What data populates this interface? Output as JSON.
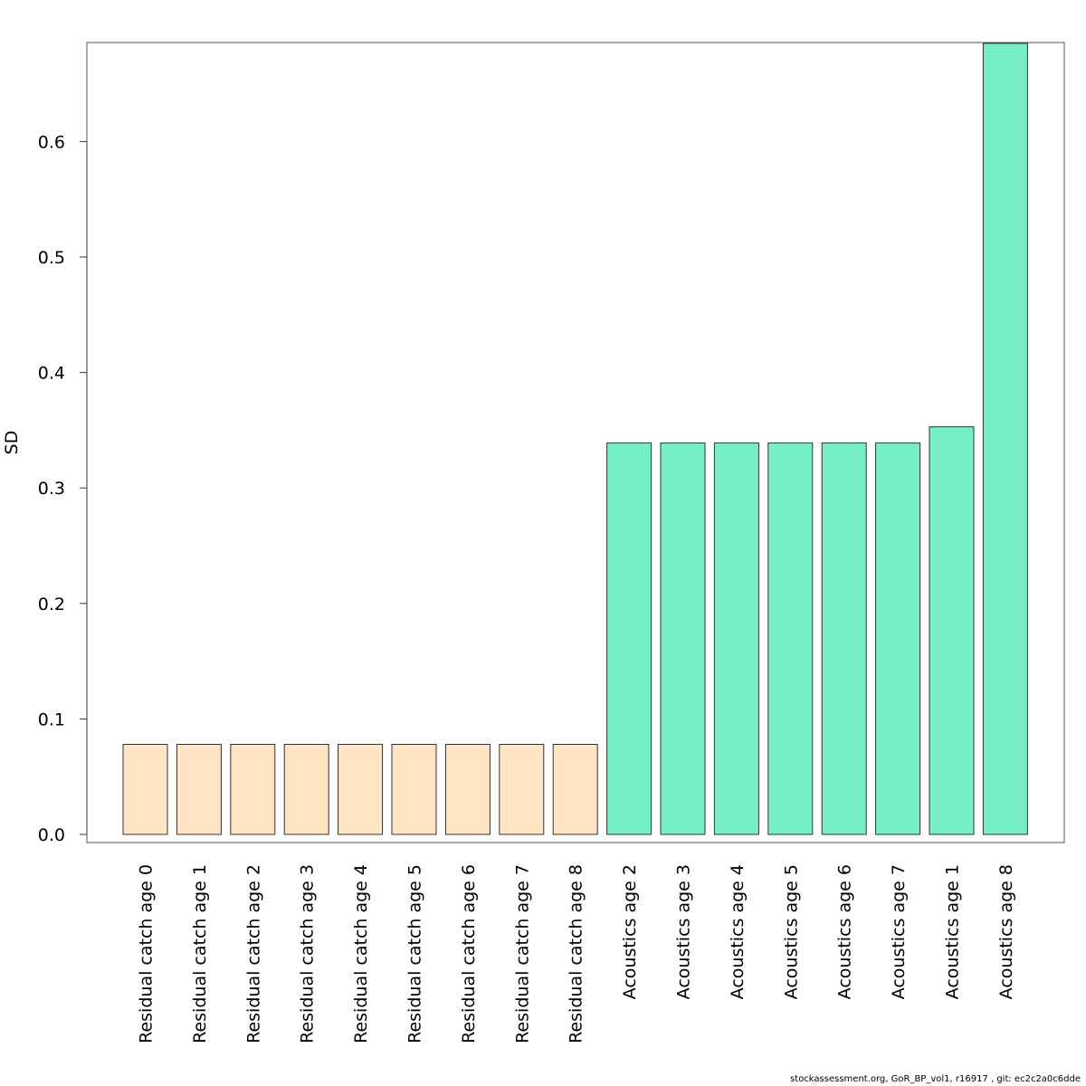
{
  "chart_data": {
    "type": "bar",
    "title": "",
    "xlabel": "",
    "ylabel": "SD",
    "ylim": [
      0,
      0.685
    ],
    "yticks": [
      0.0,
      0.1,
      0.2,
      0.3,
      0.4,
      0.5,
      0.6
    ],
    "ytick_labels": [
      "0.0",
      "0.1",
      "0.2",
      "0.3",
      "0.4",
      "0.5",
      "0.6"
    ],
    "categories": [
      "Residual catch age 0",
      "Residual catch age 1",
      "Residual catch age 2",
      "Residual catch age 3",
      "Residual catch age 4",
      "Residual catch age 5",
      "Residual catch age 6",
      "Residual catch age 7",
      "Residual catch age 8",
      "Acoustics age 2",
      "Acoustics age 3",
      "Acoustics age 4",
      "Acoustics age 5",
      "Acoustics age 6",
      "Acoustics age 7",
      "Acoustics age 1",
      "Acoustics age 8"
    ],
    "values": [
      0.078,
      0.078,
      0.078,
      0.078,
      0.078,
      0.078,
      0.078,
      0.078,
      0.078,
      0.339,
      0.339,
      0.339,
      0.339,
      0.339,
      0.339,
      0.353,
      0.685
    ],
    "bar_colors": [
      "#ffe4c4",
      "#ffe4c4",
      "#ffe4c4",
      "#ffe4c4",
      "#ffe4c4",
      "#ffe4c4",
      "#ffe4c4",
      "#ffe4c4",
      "#ffe4c4",
      "#76eec6",
      "#76eec6",
      "#76eec6",
      "#76eec6",
      "#76eec6",
      "#76eec6",
      "#76eec6",
      "#76eec6"
    ],
    "bar_stroke": "#333333",
    "grid": false,
    "legend": "none"
  },
  "footer": "stockassessment.org, GoR_BP_vol1, r16917 , git: ec2c2a0c6dde"
}
